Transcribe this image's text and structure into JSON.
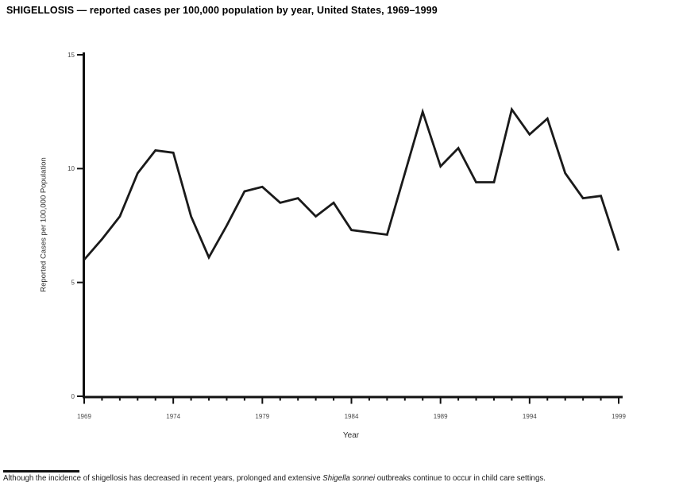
{
  "page": {
    "title": "SHIGELLOSIS — reported cases per 100,000 population by year, United States, 1969–1999"
  },
  "footnote": {
    "prefix": "Although the incidence of shigellosis has decreased in recent years, prolonged and extensive ",
    "species": "Shigella sonnei",
    "suffix": " outbreaks continue to occur in child care settings."
  },
  "chart_data": {
    "type": "line",
    "title": "SHIGELLOSIS — reported cases per 100,000 population by year, United States, 1969–1999",
    "xlabel": "Year",
    "ylabel": "Reported Cases per 100,000 Population",
    "x": [
      1969,
      1970,
      1971,
      1972,
      1973,
      1974,
      1975,
      1976,
      1977,
      1978,
      1979,
      1980,
      1981,
      1982,
      1983,
      1984,
      1985,
      1986,
      1987,
      1988,
      1989,
      1990,
      1991,
      1992,
      1993,
      1994,
      1995,
      1996,
      1997,
      1998,
      1999
    ],
    "values": [
      6.0,
      6.9,
      7.9,
      9.8,
      10.8,
      10.7,
      7.9,
      6.1,
      7.5,
      9.0,
      9.2,
      8.5,
      8.7,
      7.9,
      8.5,
      7.3,
      7.2,
      7.1,
      9.8,
      12.5,
      10.1,
      10.9,
      9.4,
      9.4,
      12.6,
      11.5,
      12.2,
      9.8,
      8.7,
      8.8,
      6.4
    ],
    "ylim": [
      0,
      15
    ],
    "y_ticks": [
      0,
      5,
      10,
      15
    ],
    "x_major_ticks": [
      1969,
      1974,
      1979,
      1984,
      1989,
      1994,
      1999
    ],
    "grid": false,
    "legend": null,
    "line_color": "#1a1a1a",
    "axis_color": "#111111",
    "tick_label_color": "#4a4a4a"
  }
}
